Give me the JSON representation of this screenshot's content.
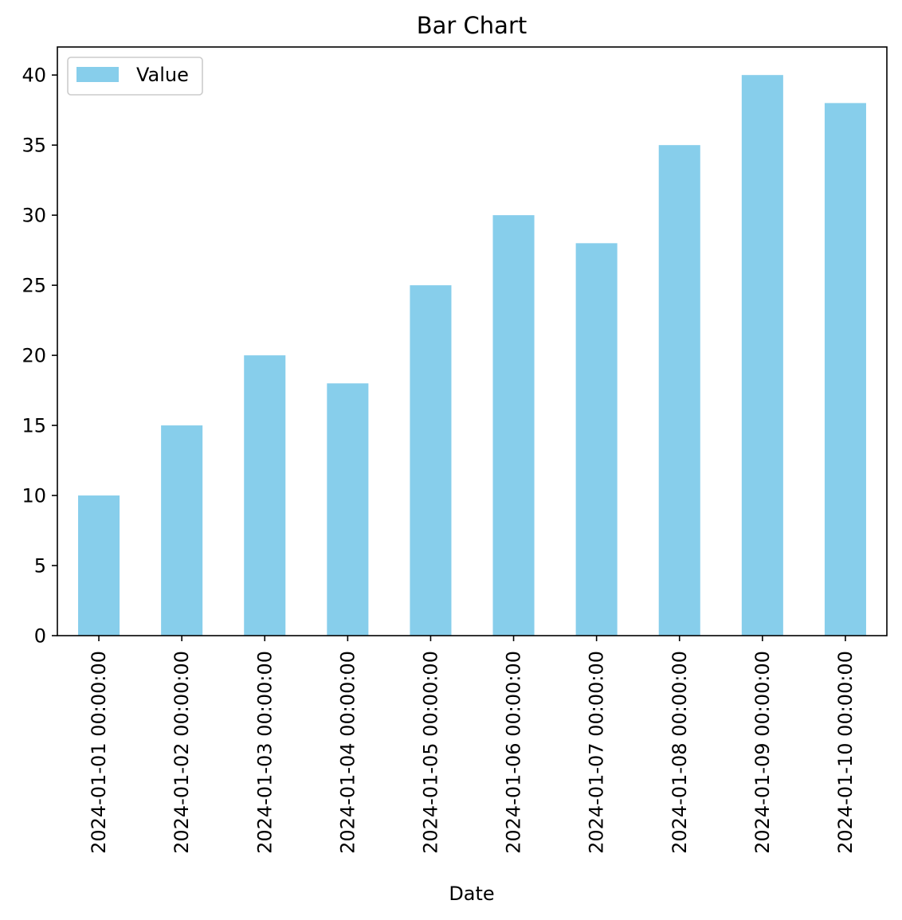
{
  "chart_data": {
    "type": "bar",
    "title": "Bar Chart",
    "xlabel": "Date",
    "ylabel": "",
    "categories": [
      "2024-01-01 00:00:00",
      "2024-01-02 00:00:00",
      "2024-01-03 00:00:00",
      "2024-01-04 00:00:00",
      "2024-01-05 00:00:00",
      "2024-01-06 00:00:00",
      "2024-01-07 00:00:00",
      "2024-01-08 00:00:00",
      "2024-01-09 00:00:00",
      "2024-01-10 00:00:00"
    ],
    "series": [
      {
        "name": "Value",
        "values": [
          10,
          15,
          20,
          18,
          25,
          30,
          28,
          35,
          40,
          38
        ],
        "color": "#87ceeb"
      }
    ],
    "ylim": [
      0,
      42
    ],
    "yticks": [
      0,
      5,
      10,
      15,
      20,
      25,
      30,
      35,
      40
    ],
    "grid": false,
    "legend_position": "top-left",
    "x_tick_rotation": "vertical"
  }
}
